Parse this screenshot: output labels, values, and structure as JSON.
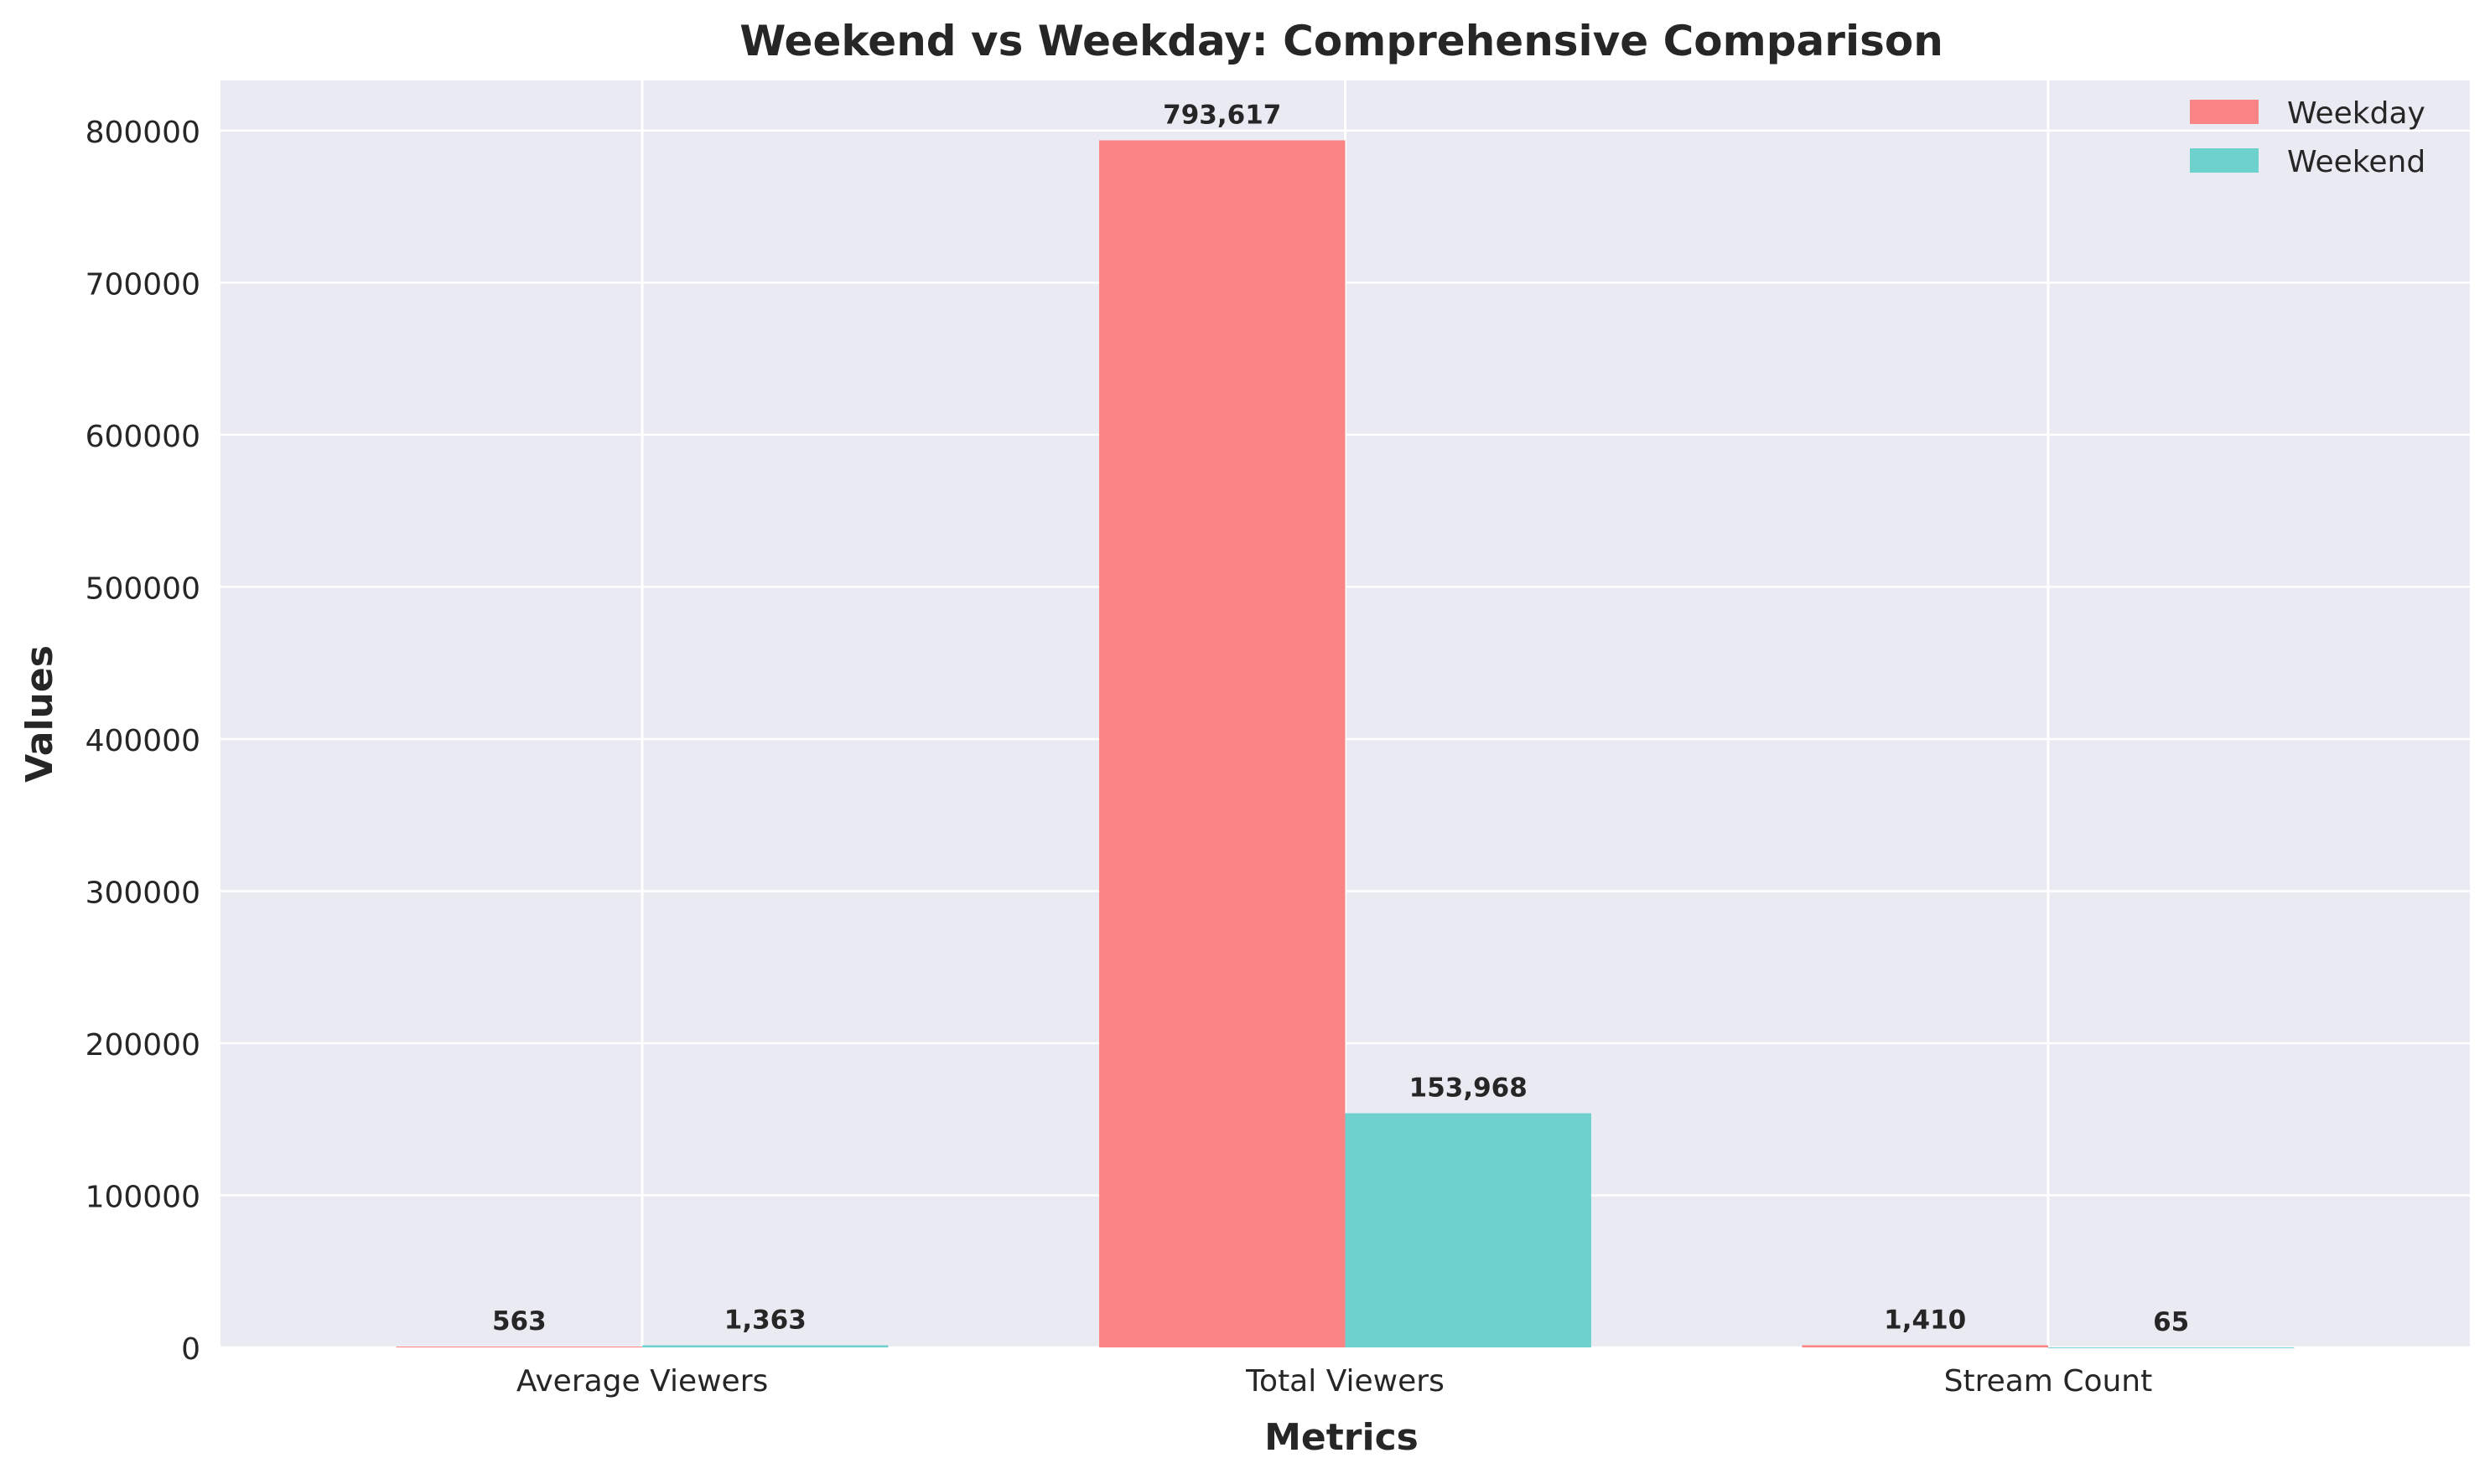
{
  "chart_data": {
    "type": "bar",
    "title": "Weekend vs Weekday: Comprehensive Comparison",
    "xlabel": "Metrics",
    "ylabel": "Values",
    "categories": [
      "Average Viewers",
      "Total Viewers",
      "Stream Count"
    ],
    "series": [
      {
        "name": "Weekday",
        "color": "#fb8585",
        "values": [
          563,
          793617,
          1410
        ],
        "labels": [
          "563",
          "793,617",
          "1,410"
        ]
      },
      {
        "name": "Weekend",
        "color": "#6fd1ce",
        "values": [
          1363,
          153968,
          65
        ],
        "labels": [
          "1,363",
          "153,968",
          "65"
        ]
      }
    ],
    "ylim": [
      0,
      833000
    ],
    "yticks": [
      0,
      100000,
      200000,
      300000,
      400000,
      500000,
      600000,
      700000,
      800000
    ],
    "ytick_labels": [
      "0",
      "100000",
      "200000",
      "300000",
      "400000",
      "500000",
      "600000",
      "700000",
      "800000"
    ],
    "grid": true,
    "legend_position": "top-right",
    "background_color": "#eaeaf2"
  }
}
